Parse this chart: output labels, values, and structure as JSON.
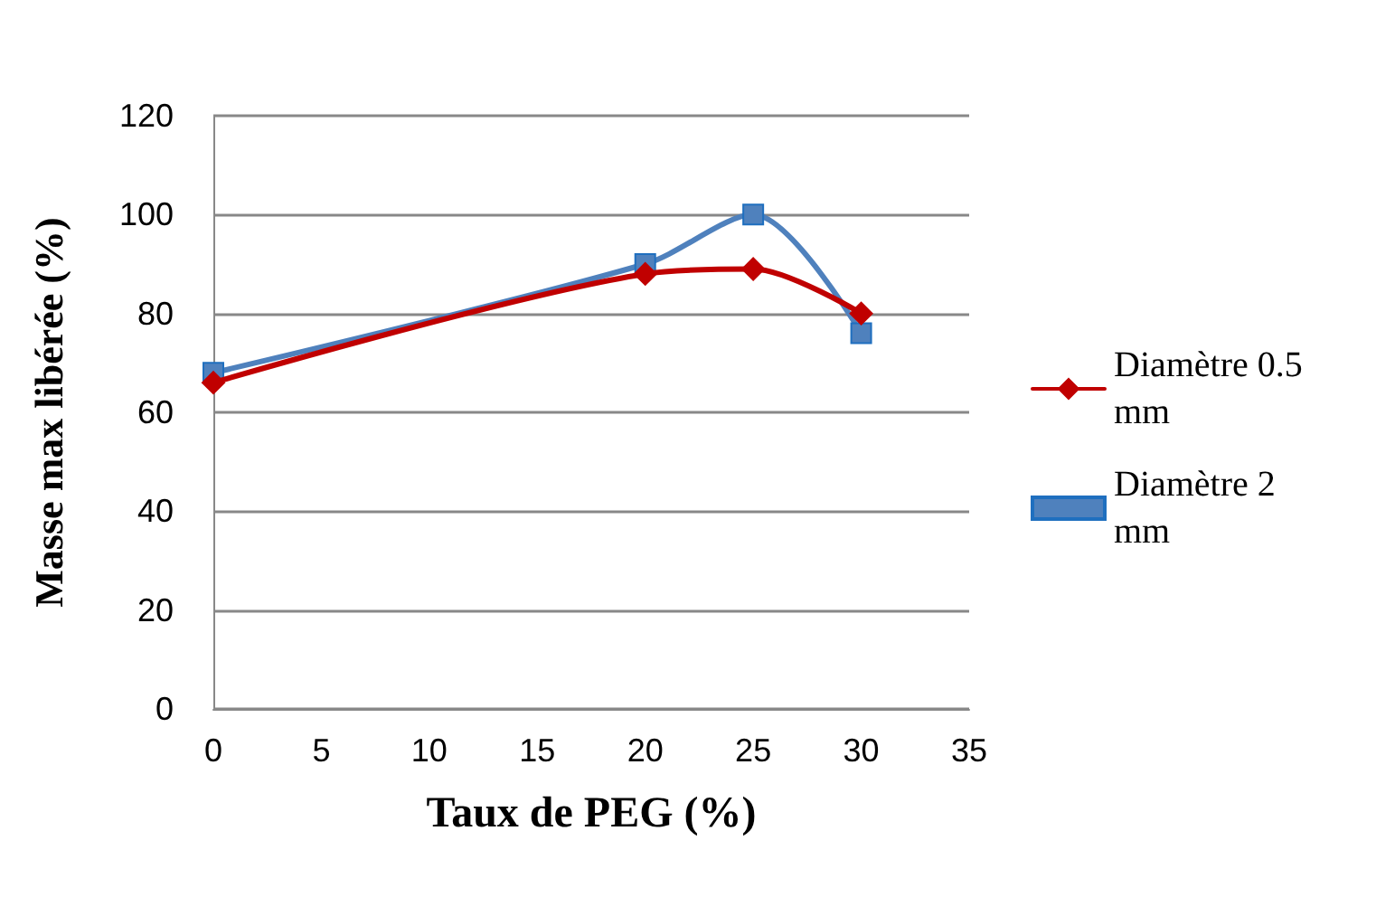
{
  "chart_data": {
    "type": "line",
    "xlabel": "Taux de PEG (%)",
    "ylabel": "Masse max libérée (%)",
    "x": [
      0,
      20,
      25,
      30
    ],
    "series": [
      {
        "name": "Diamètre 0.5 mm",
        "color": "#c00000",
        "marker": "diamond",
        "values": [
          66,
          88,
          89,
          80
        ]
      },
      {
        "name": "Diamètre 2 mm",
        "color": "#4f81bd",
        "marker": "square",
        "values": [
          68,
          90,
          100,
          76
        ]
      }
    ],
    "xlim": [
      0,
      35
    ],
    "xticks": [
      0,
      5,
      10,
      15,
      20,
      25,
      30,
      35
    ],
    "ylim": [
      0,
      120
    ],
    "yticks": [
      0,
      20,
      40,
      60,
      80,
      100,
      120
    ],
    "grid": "y",
    "legend": "right",
    "line_style": "solid"
  }
}
